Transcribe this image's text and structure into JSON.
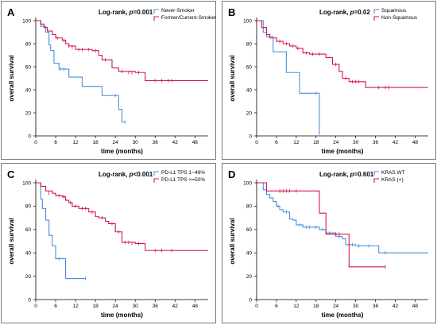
{
  "colors": {
    "series_blue": "#4a8fdd",
    "series_red": "#d4174a",
    "frame": "#7a7a7a"
  },
  "chart_data": [
    {
      "panel": "A",
      "type": "line",
      "annotation_label": "Log-rank, ",
      "annotation_p": "p",
      "annotation_value": "=0.001",
      "xlabel": "time (months)",
      "ylabel": "overall survival",
      "xlim": [
        0,
        52
      ],
      "ylim": [
        0,
        100
      ],
      "xticks": [
        0,
        6,
        12,
        18,
        24,
        30,
        36,
        42,
        48
      ],
      "yticks": [
        0,
        20,
        40,
        60,
        80,
        100
      ],
      "legend_position": "top-right",
      "series": [
        {
          "name": "Never-Smoker",
          "color": "#4a8fdd",
          "steps": [
            [
              0,
              100
            ],
            [
              1.5,
              95
            ],
            [
              3,
              90
            ],
            [
              4,
              79
            ],
            [
              4.5,
              74
            ],
            [
              5.5,
              63
            ],
            [
              7,
              58
            ],
            [
              10,
              51
            ],
            [
              14,
              43
            ],
            [
              20,
              35
            ],
            [
              25,
              23
            ],
            [
              26,
              12
            ],
            [
              27,
              12
            ]
          ],
          "censors": [
            [
              7.5,
              58
            ],
            [
              8.5,
              58
            ],
            [
              24,
              35
            ],
            [
              27,
              12
            ]
          ]
        },
        {
          "name": "Former/Current-Smoker",
          "color": "#d4174a",
          "steps": [
            [
              0,
              100
            ],
            [
              1.5,
              97
            ],
            [
              2.5,
              94
            ],
            [
              3.5,
              91
            ],
            [
              5,
              88
            ],
            [
              6,
              85
            ],
            [
              8,
              83
            ],
            [
              9,
              80
            ],
            [
              10,
              78
            ],
            [
              12,
              75
            ],
            [
              17,
              74
            ],
            [
              19,
              70
            ],
            [
              20,
              66
            ],
            [
              23,
              59
            ],
            [
              25,
              56
            ],
            [
              30,
              55
            ],
            [
              33,
              48
            ],
            [
              52,
              48
            ]
          ],
          "censors": [
            [
              6.5,
              85
            ],
            [
              8.5,
              83
            ],
            [
              10,
              78
            ],
            [
              11,
              77
            ],
            [
              13,
              75
            ],
            [
              14,
              75
            ],
            [
              16,
              75
            ],
            [
              18,
              74
            ],
            [
              21,
              66
            ],
            [
              26,
              56
            ],
            [
              28,
              55
            ],
            [
              29,
              55
            ],
            [
              31,
              55
            ],
            [
              36,
              48
            ],
            [
              38,
              48
            ],
            [
              40,
              48
            ],
            [
              41,
              48
            ]
          ]
        }
      ]
    },
    {
      "panel": "B",
      "type": "line",
      "annotation_label": "Log-rank, ",
      "annotation_p": "p",
      "annotation_value": "=0.02",
      "xlabel": "time (months)",
      "ylabel": "overall survival",
      "xlim": [
        0,
        52
      ],
      "ylim": [
        0,
        100
      ],
      "xticks": [
        0,
        6,
        12,
        18,
        24,
        30,
        36,
        42,
        48
      ],
      "yticks": [
        0,
        20,
        40,
        60,
        80,
        100
      ],
      "legend_position": "top-right",
      "series": [
        {
          "name": "Squamous",
          "color": "#4a8fdd",
          "steps": [
            [
              0,
              100
            ],
            [
              2,
              90
            ],
            [
              3,
              86
            ],
            [
              5,
              73
            ],
            [
              8,
              73
            ],
            [
              9,
              55
            ],
            [
              13,
              37
            ],
            [
              18,
              37
            ],
            [
              19,
              1
            ]
          ],
          "censors": [
            [
              18,
              37
            ]
          ]
        },
        {
          "name": "Non-Squamous",
          "color": "#d4174a",
          "steps": [
            [
              0,
              100
            ],
            [
              1.5,
              94
            ],
            [
              3,
              88
            ],
            [
              4,
              85
            ],
            [
              6,
              82
            ],
            [
              8,
              80
            ],
            [
              10,
              78
            ],
            [
              12,
              76
            ],
            [
              14,
              72
            ],
            [
              16,
              71
            ],
            [
              21,
              68
            ],
            [
              23,
              62
            ],
            [
              25,
              56
            ],
            [
              26,
              50
            ],
            [
              28,
              47
            ],
            [
              33,
              42
            ],
            [
              52,
              42
            ]
          ],
          "censors": [
            [
              7,
              82
            ],
            [
              9,
              80
            ],
            [
              11,
              78
            ],
            [
              12.5,
              76
            ],
            [
              15,
              72
            ],
            [
              17,
              71
            ],
            [
              19,
              71
            ],
            [
              24,
              62
            ],
            [
              27,
              50
            ],
            [
              29,
              47
            ],
            [
              30,
              47
            ],
            [
              31,
              47
            ],
            [
              37,
              42
            ],
            [
              39,
              42
            ],
            [
              40,
              42
            ]
          ]
        }
      ]
    },
    {
      "panel": "C",
      "type": "line",
      "annotation_label": "Log-rank, ",
      "annotation_p": "p",
      "annotation_value": "<0.001",
      "xlabel": "time (months)",
      "ylabel": "overall survival",
      "xlim": [
        0,
        52
      ],
      "ylim": [
        0,
        100
      ],
      "xticks": [
        0,
        6,
        12,
        18,
        24,
        30,
        36,
        42,
        48
      ],
      "yticks": [
        0,
        20,
        40,
        60,
        80,
        100
      ],
      "legend_position": "top-right",
      "series": [
        {
          "name": "PD-L1 TPS 1~49%",
          "color": "#4a8fdd",
          "steps": [
            [
              0,
              100
            ],
            [
              1.5,
              86
            ],
            [
              2,
              78
            ],
            [
              3,
              68
            ],
            [
              4,
              55
            ],
            [
              5,
              46
            ],
            [
              6,
              35
            ],
            [
              9,
              18
            ],
            [
              15,
              18
            ]
          ],
          "censors": [
            [
              7,
              35
            ],
            [
              15,
              18
            ]
          ]
        },
        {
          "name": "PD-L1 TPS >=50%",
          "color": "#d4174a",
          "steps": [
            [
              0,
              100
            ],
            [
              1.5,
              97
            ],
            [
              3,
              93
            ],
            [
              5,
              91
            ],
            [
              6,
              89
            ],
            [
              8,
              88
            ],
            [
              9,
              85
            ],
            [
              10,
              83
            ],
            [
              11,
              80
            ],
            [
              13,
              78
            ],
            [
              16,
              75
            ],
            [
              18,
              71
            ],
            [
              19,
              70
            ],
            [
              21,
              67
            ],
            [
              22,
              65
            ],
            [
              24,
              58
            ],
            [
              26,
              49
            ],
            [
              30,
              48
            ],
            [
              33,
              42
            ],
            [
              52,
              42
            ]
          ],
          "censors": [
            [
              4,
              91
            ],
            [
              7,
              89
            ],
            [
              8.5,
              88
            ],
            [
              10.5,
              83
            ],
            [
              12,
              80
            ],
            [
              14,
              78
            ],
            [
              15,
              78
            ],
            [
              17,
              75
            ],
            [
              20,
              70
            ],
            [
              23,
              65
            ],
            [
              25,
              58
            ],
            [
              27,
              49
            ],
            [
              28,
              49
            ],
            [
              29,
              48
            ],
            [
              31,
              48
            ],
            [
              36,
              42
            ],
            [
              38,
              42
            ],
            [
              41,
              42
            ]
          ]
        }
      ]
    },
    {
      "panel": "D",
      "type": "line",
      "annotation_label": "Log-rank, ",
      "annotation_p": "p",
      "annotation_value": "=0.601",
      "xlabel": "time (months)",
      "ylabel": "overall survival",
      "xlim": [
        0,
        52
      ],
      "ylim": [
        0,
        100
      ],
      "xticks": [
        0,
        6,
        12,
        18,
        24,
        30,
        36,
        42,
        48
      ],
      "yticks": [
        0,
        20,
        40,
        60,
        80,
        100
      ],
      "legend_position": "top-right",
      "series": [
        {
          "name": "KRAS WT",
          "color": "#4a8fdd",
          "steps": [
            [
              0,
              100
            ],
            [
              2,
              94
            ],
            [
              3,
              90
            ],
            [
              4,
              87
            ],
            [
              5,
              84
            ],
            [
              6,
              80
            ],
            [
              7,
              77
            ],
            [
              8,
              75
            ],
            [
              10,
              69
            ],
            [
              11,
              68
            ],
            [
              12,
              64
            ],
            [
              14,
              62
            ],
            [
              17,
              62
            ],
            [
              19,
              60
            ],
            [
              21,
              57
            ],
            [
              24,
              54
            ],
            [
              26,
              52
            ],
            [
              27,
              47
            ],
            [
              30,
              46
            ],
            [
              33,
              46
            ],
            [
              37,
              40
            ],
            [
              52,
              40
            ]
          ],
          "censors": [
            [
              6.5,
              80
            ],
            [
              9,
              75
            ],
            [
              13,
              64
            ],
            [
              15,
              62
            ],
            [
              16,
              62
            ],
            [
              18,
              62
            ],
            [
              20,
              60
            ],
            [
              22,
              57
            ],
            [
              25,
              54
            ],
            [
              29,
              47
            ],
            [
              31,
              46
            ],
            [
              34,
              46
            ],
            [
              39,
              40
            ]
          ]
        },
        {
          "name": "KRAS (+)",
          "color": "#d4174a",
          "steps": [
            [
              0,
              100
            ],
            [
              3,
              93
            ],
            [
              18,
              93
            ],
            [
              19,
              74
            ],
            [
              21,
              56
            ],
            [
              27,
              56
            ],
            [
              28,
              28
            ],
            [
              39,
              28
            ]
          ],
          "censors": [
            [
              7,
              93
            ],
            [
              8,
              93
            ],
            [
              9,
              93
            ],
            [
              10,
              93
            ],
            [
              12,
              93
            ],
            [
              24,
              56
            ],
            [
              25,
              56
            ],
            [
              39,
              28
            ]
          ]
        }
      ]
    }
  ]
}
